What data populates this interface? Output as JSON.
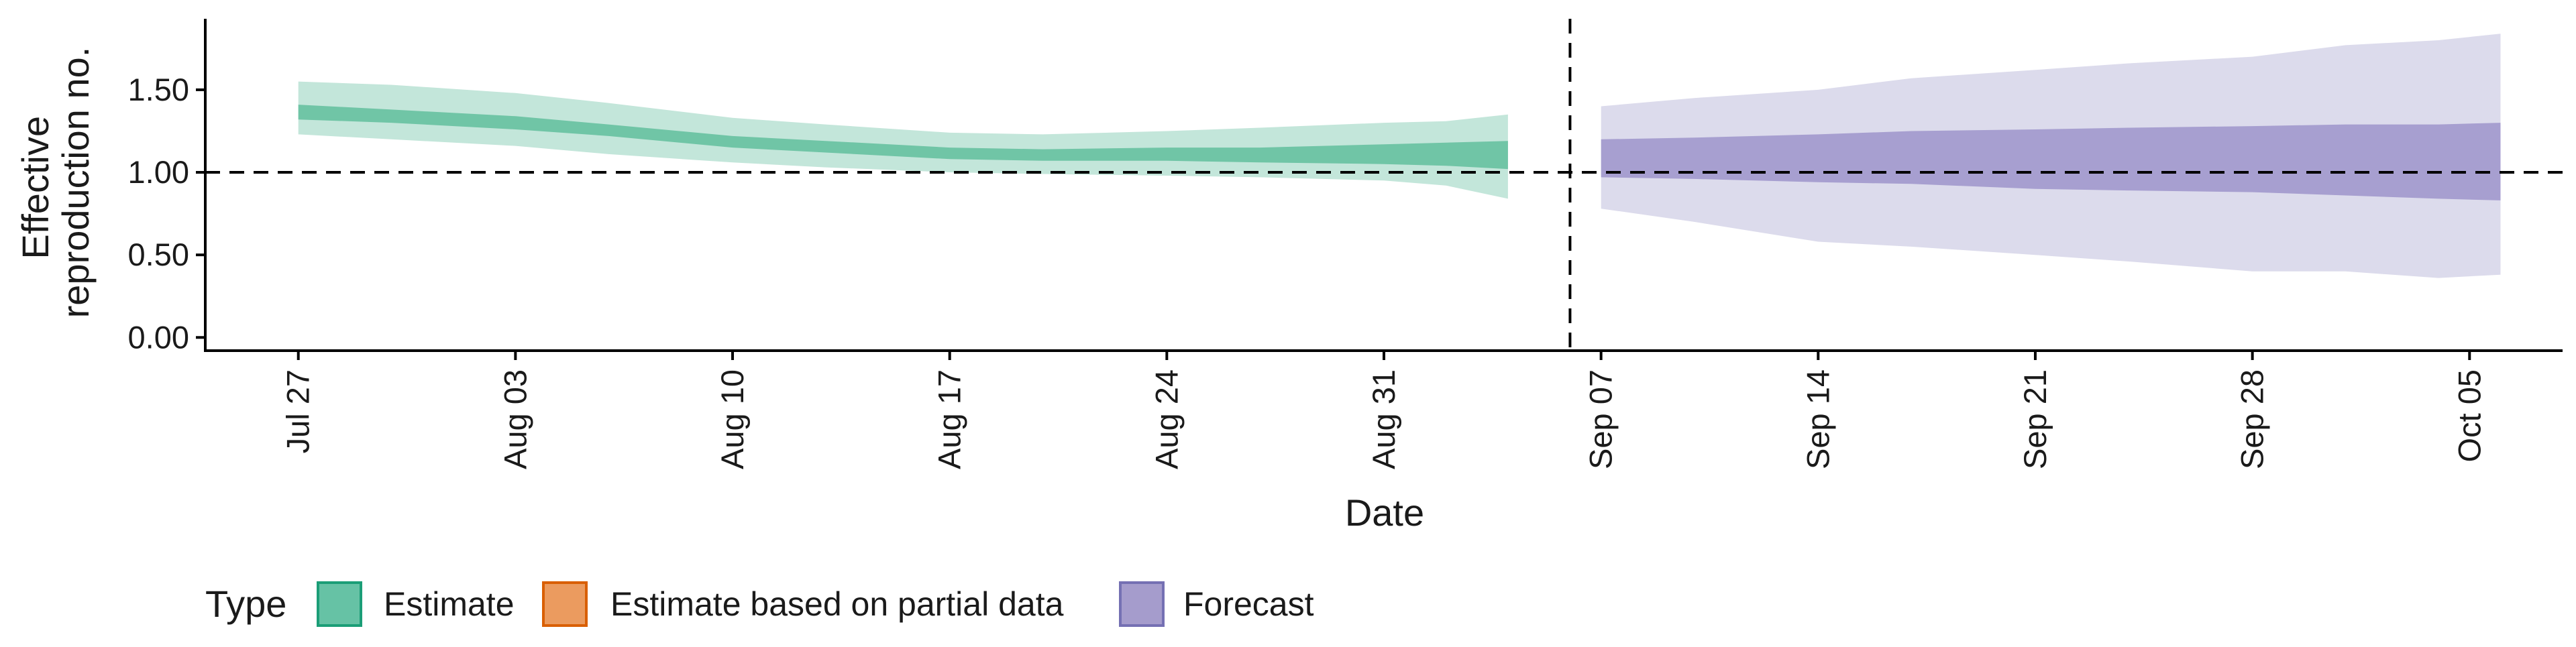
{
  "chart_data": {
    "type": "area",
    "title": "",
    "xlabel": "Date",
    "ylabel_lines": [
      "Effective",
      "reproduction no."
    ],
    "x_ticks": [
      {
        "date": "2020-07-27",
        "label": "Jul 27"
      },
      {
        "date": "2020-08-03",
        "label": "Aug 03"
      },
      {
        "date": "2020-08-10",
        "label": "Aug 10"
      },
      {
        "date": "2020-08-17",
        "label": "Aug 17"
      },
      {
        "date": "2020-08-24",
        "label": "Aug 24"
      },
      {
        "date": "2020-08-31",
        "label": "Aug 31"
      },
      {
        "date": "2020-09-07",
        "label": "Sep 07"
      },
      {
        "date": "2020-09-14",
        "label": "Sep 14"
      },
      {
        "date": "2020-09-21",
        "label": "Sep 21"
      },
      {
        "date": "2020-09-28",
        "label": "Sep 28"
      },
      {
        "date": "2020-10-05",
        "label": "Oct 05"
      }
    ],
    "y_ticks": [
      {
        "value": 0.0,
        "label": "0.00"
      },
      {
        "value": 0.5,
        "label": "0.50"
      },
      {
        "value": 1.0,
        "label": "1.00"
      },
      {
        "value": 1.5,
        "label": "1.50"
      }
    ],
    "xlim": [
      "2020-07-24",
      "2020-10-08"
    ],
    "ylim": [
      -0.08,
      1.93
    ],
    "hline_value": 1.0,
    "vline_date": "2020-09-06",
    "grid": false,
    "legend_position": "bottom-left",
    "legend": {
      "title": "Type",
      "items": [
        {
          "label": "Estimate",
          "fill": "#66c2a5",
          "stroke": "#1b9e77"
        },
        {
          "label": "Estimate based on partial data",
          "fill": "#eb9b5f",
          "stroke": "#d95f02"
        },
        {
          "label": "Forecast",
          "fill": "#a59ccc",
          "stroke": "#7570b3"
        }
      ]
    },
    "colors": {
      "estimate_outer": "#c3e6da",
      "estimate_inner": "#70c5a6",
      "forecast_outer": "#dcdbec",
      "forecast_inner": "#a79fd0"
    },
    "series": [
      {
        "name": "Estimate",
        "x": [
          "2020-07-27",
          "2020-07-30",
          "2020-08-03",
          "2020-08-06",
          "2020-08-10",
          "2020-08-13",
          "2020-08-17",
          "2020-08-20",
          "2020-08-24",
          "2020-08-27",
          "2020-08-31",
          "2020-09-02",
          "2020-09-04"
        ],
        "lower90": [
          1.23,
          1.2,
          1.16,
          1.11,
          1.06,
          1.03,
          1.0,
          0.99,
          0.98,
          0.97,
          0.95,
          0.92,
          0.84
        ],
        "upper90": [
          1.55,
          1.53,
          1.48,
          1.42,
          1.33,
          1.29,
          1.24,
          1.23,
          1.25,
          1.27,
          1.3,
          1.31,
          1.35
        ],
        "lower50": [
          1.32,
          1.3,
          1.26,
          1.22,
          1.15,
          1.12,
          1.08,
          1.07,
          1.07,
          1.06,
          1.05,
          1.04,
          1.02
        ],
        "upper50": [
          1.41,
          1.38,
          1.34,
          1.29,
          1.22,
          1.19,
          1.15,
          1.14,
          1.15,
          1.15,
          1.17,
          1.18,
          1.19
        ]
      },
      {
        "name": "Forecast",
        "x": [
          "2020-09-07",
          "2020-09-10",
          "2020-09-14",
          "2020-09-17",
          "2020-09-21",
          "2020-09-24",
          "2020-09-28",
          "2020-10-01",
          "2020-10-04",
          "2020-10-06"
        ],
        "lower90": [
          0.78,
          0.7,
          0.58,
          0.55,
          0.5,
          0.46,
          0.4,
          0.4,
          0.36,
          0.38
        ],
        "upper90": [
          1.4,
          1.45,
          1.5,
          1.57,
          1.62,
          1.66,
          1.7,
          1.77,
          1.8,
          1.84
        ],
        "lower50": [
          0.97,
          0.96,
          0.94,
          0.93,
          0.9,
          0.89,
          0.88,
          0.86,
          0.84,
          0.83
        ],
        "upper50": [
          1.2,
          1.21,
          1.23,
          1.25,
          1.26,
          1.27,
          1.28,
          1.29,
          1.29,
          1.3
        ]
      }
    ]
  }
}
